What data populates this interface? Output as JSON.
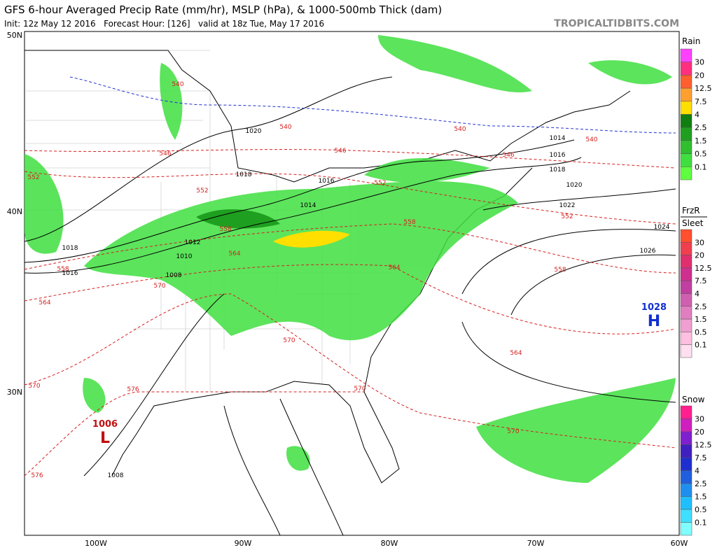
{
  "header": {
    "title": "GFS 6-hour Averaged Precip Rate (mm/hr), MSLP (hPa), & 1000-500mb Thick (dam)",
    "subtitle": "Init: 12z May 12 2016   Forecast Hour: [126]   valid at 18z Tue, May 17 2016",
    "credit": "TROPICALTIDBITS.COM"
  },
  "map": {
    "lat_labels": [
      "50N",
      "40N",
      "30N"
    ],
    "lon_labels": [
      "100W",
      "90W",
      "80W",
      "70W",
      "60W"
    ],
    "isobar_labels": [
      1020,
      1018,
      1016,
      1014,
      1012,
      1010,
      1008,
      1018,
      1016,
      1014,
      1016,
      1018,
      1020,
      1022,
      1024,
      1026,
      1008
    ],
    "thickness_labels": [
      540,
      540,
      540,
      540,
      546,
      546,
      546,
      552,
      552,
      552,
      552,
      558,
      558,
      558,
      558,
      564,
      564,
      564,
      564,
      570,
      570,
      570,
      570,
      570,
      576,
      576
    ],
    "high": {
      "pressure": 1028,
      "symbol": "H"
    },
    "low": {
      "pressure": 1006,
      "symbol": "L"
    }
  },
  "legends": [
    {
      "title": "Rain",
      "levels": [
        30,
        20,
        12.5,
        7.5,
        4,
        2.5,
        1.5,
        0.5,
        0.1
      ],
      "colors": [
        "#ff40ff",
        "#ff2f7f",
        "#ff5f2f",
        "#ff9f2f",
        "#ffdf00",
        "#107f10",
        "#1f9f1f",
        "#2fbf2f",
        "#3fdf3f",
        "#5fff3f"
      ]
    },
    {
      "title": "FrzR",
      "subtitle": "Sleet",
      "levels": [
        30,
        20,
        12.5,
        7.5,
        4,
        2.5,
        1.5,
        0.5,
        0.1
      ],
      "colors": [
        "#ff4f2f",
        "#ef3f4f",
        "#df2f6f",
        "#cf2f8f",
        "#c03fa0",
        "#d05fb0",
        "#e07fc0",
        "#ef9fd0",
        "#ffbfe0",
        "#ffdff0"
      ]
    },
    {
      "title": "Snow",
      "levels": [
        30,
        20,
        12.5,
        7.5,
        4,
        2.5,
        1.5,
        0.5,
        0.1
      ],
      "colors": [
        "#ff1f8f",
        "#cf1fbf",
        "#7f1fcf",
        "#3f1fbf",
        "#1f2fcf",
        "#1f5fdf",
        "#1f8fef",
        "#1fbfff",
        "#3fdfff",
        "#7fffff"
      ]
    }
  ]
}
